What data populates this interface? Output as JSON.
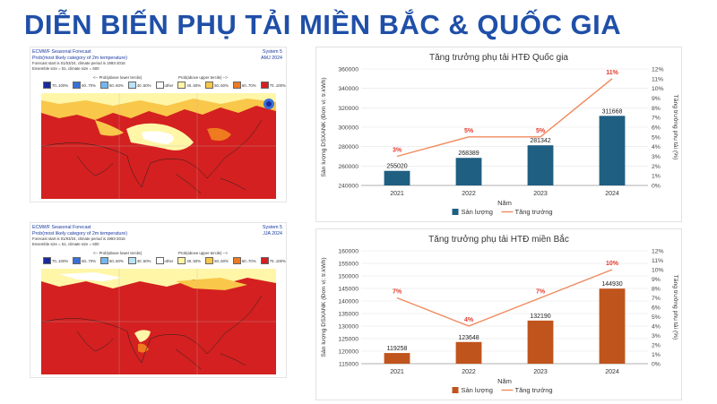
{
  "page_title": "DIỄN BIẾN PHỤ TẢI MIỀN BẮC & QUỐC GIA",
  "maps": [
    {
      "header_left_1": "ECMWF Seasonal Forecast",
      "header_left_2": "Prob(most likely category of 2m temperature)",
      "header_left_3": "Forecast start is 01/03/24, climate period is 1993-2016",
      "header_left_4": "Ensemble size = 51, climate size = 600",
      "system": "System 5",
      "period": "AMJ 2024",
      "below_label": "<-- Prob(above lower tercile)",
      "above_label": "Prob(above upper tercile) -->",
      "legend": [
        {
          "label": "70..100%",
          "color": "#1a2a9e"
        },
        {
          "label": "60..70%",
          "color": "#3a6fd8"
        },
        {
          "label": "50..60%",
          "color": "#72b6f0"
        },
        {
          "label": "40..50%",
          "color": "#b8e4f6"
        },
        {
          "label": "other",
          "color": "#ffffff"
        },
        {
          "label": "40..50%",
          "color": "#fff6a8"
        },
        {
          "label": "50..60%",
          "color": "#f9c74a"
        },
        {
          "label": "60..70%",
          "color": "#ef7a1f"
        },
        {
          "label": "70..100%",
          "color": "#d42020"
        }
      ]
    },
    {
      "header_left_1": "ECMWF Seasonal Forecast",
      "header_left_2": "Prob(most likely category of 2m temperature)",
      "header_left_3": "Forecast start is 01/03/24, climate period is 1993-2016",
      "header_left_4": "Ensemble size = 51, climate size = 600",
      "system": "System 5",
      "period": "JJA 2024",
      "below_label": "<-- Prob(above lower tercile)",
      "above_label": "Prob(above upper tercile) -->",
      "legend": [
        {
          "label": "70..100%",
          "color": "#1a2a9e"
        },
        {
          "label": "60..70%",
          "color": "#3a6fd8"
        },
        {
          "label": "50..60%",
          "color": "#72b6f0"
        },
        {
          "label": "40..50%",
          "color": "#b8e4f6"
        },
        {
          "label": "other",
          "color": "#ffffff"
        },
        {
          "label": "40..50%",
          "color": "#fff6a8"
        },
        {
          "label": "50..60%",
          "color": "#f9c74a"
        },
        {
          "label": "60..70%",
          "color": "#ef7a1f"
        },
        {
          "label": "70..100%",
          "color": "#d42020"
        }
      ]
    }
  ],
  "chart_data": [
    {
      "type": "bar",
      "title": "Tăng trưởng phụ tải HTĐ Quốc gia",
      "xlabel": "Năm",
      "ylabel": "Sản lượng DSXANK (Đơn vị: tr.kWh)",
      "y2label": "Tăng trưởng phụ tải (%)",
      "categories": [
        "2021",
        "2022",
        "2023",
        "2024"
      ],
      "series": [
        {
          "name": "Sản lượng",
          "kind": "bar",
          "values": [
            255020,
            268389,
            281342,
            311668
          ],
          "color": "#1f5f82"
        },
        {
          "name": "Tăng trưởng",
          "kind": "line",
          "axis": "right",
          "values": [
            3,
            5,
            5,
            11
          ],
          "labels": [
            "3%",
            "5%",
            "5%",
            "11%"
          ],
          "color": "#f08a5d"
        }
      ],
      "ylim": [
        240000,
        360000
      ],
      "yticks": [
        240000,
        260000,
        280000,
        300000,
        320000,
        340000,
        360000
      ],
      "y2lim": [
        0,
        12
      ],
      "y2ticks": [
        "0%",
        "1%",
        "2%",
        "3%",
        "4%",
        "5%",
        "6%",
        "7%",
        "8%",
        "9%",
        "10%",
        "11%",
        "12%"
      ],
      "legend_position": "bottom"
    },
    {
      "type": "bar",
      "title": "Tăng trưởng phụ tải HTĐ miền Bắc",
      "xlabel": "Năm",
      "ylabel": "Sản lượng DSXANK (Đơn vị: tr.kWh)",
      "y2label": "Tăng trưởng phụ tải (%)",
      "categories": [
        "2021",
        "2022",
        "2023",
        "2024"
      ],
      "series": [
        {
          "name": "Sản lượng",
          "kind": "bar",
          "values": [
            119258,
            123648,
            132190,
            144930
          ],
          "color": "#c0541d"
        },
        {
          "name": "Tăng trưởng",
          "kind": "line",
          "axis": "right",
          "values": [
            7,
            4,
            7,
            10
          ],
          "labels": [
            "7%",
            "4%",
            "7%",
            "10%"
          ],
          "color": "#f08a5d"
        }
      ],
      "ylim": [
        115000,
        160000
      ],
      "yticks": [
        115000,
        120000,
        125000,
        130000,
        135000,
        140000,
        145000,
        150000,
        155000,
        160000
      ],
      "y2lim": [
        0,
        12
      ],
      "y2ticks": [
        "0%",
        "1%",
        "2%",
        "3%",
        "4%",
        "5%",
        "6%",
        "7%",
        "8%",
        "9%",
        "10%",
        "11%",
        "12%"
      ],
      "legend_position": "bottom"
    }
  ]
}
